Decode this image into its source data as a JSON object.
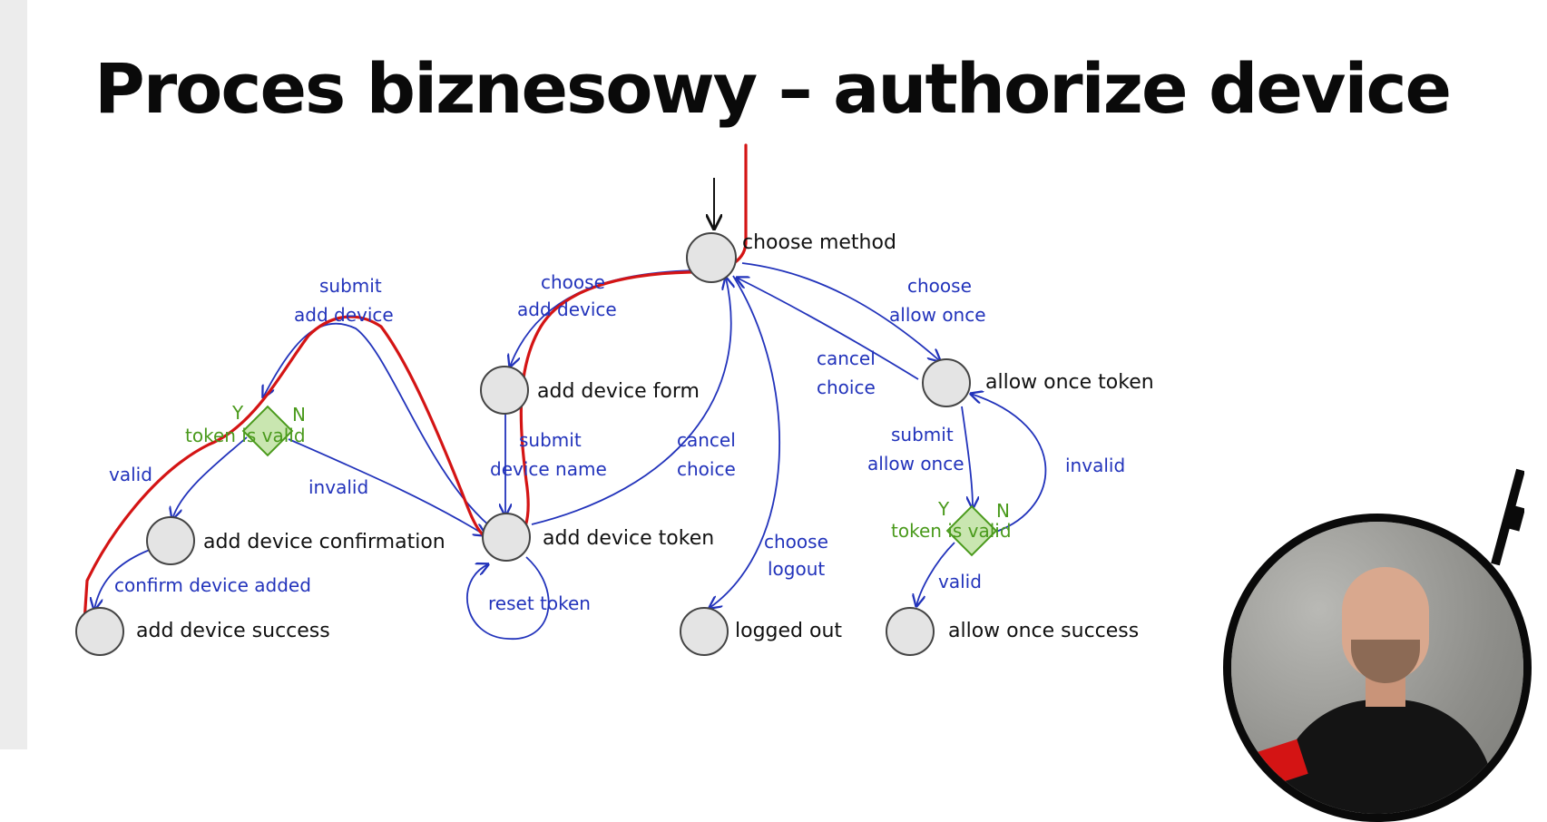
{
  "title": "Proces biznesowy – authorize device",
  "states": {
    "choose_method": "choose method",
    "add_device_form": "add device form",
    "add_device_token": "add device token",
    "add_device_confirmation": "add device confirmation",
    "add_device_success": "add device success",
    "logged_out": "logged out",
    "allow_once_token": "allow once token",
    "allow_once_success": "allow once success"
  },
  "decisions": {
    "left": {
      "label": "token is valid",
      "yes": "Y",
      "no": "N"
    },
    "right": {
      "label": "token is valid",
      "yes": "Y",
      "no": "N"
    }
  },
  "transitions": {
    "choose_add_device_1": "choose",
    "choose_add_device_2": "add device",
    "submit_add_device_1": "submit",
    "submit_add_device_2": "add device",
    "submit_device_name_1": "submit",
    "submit_device_name_2": "device name",
    "cancel_choice_mid_1": "cancel",
    "cancel_choice_mid_2": "choice",
    "valid_left": "valid",
    "invalid_left": "invalid",
    "confirm_device_added": "confirm device added",
    "reset_token": "reset token",
    "choose_logout_1": "choose",
    "choose_logout_2": "logout",
    "choose_allow_once_1": "choose",
    "choose_allow_once_2": "allow once",
    "cancel_choice_right_1": "cancel",
    "cancel_choice_right_2": "choice",
    "submit_allow_once_1": "submit",
    "submit_allow_once_2": "allow once",
    "invalid_right": "invalid",
    "valid_right": "valid"
  },
  "colors": {
    "edge": "#2233bb",
    "decision": "#4a9a1c",
    "highlight_path": "#d41414"
  }
}
